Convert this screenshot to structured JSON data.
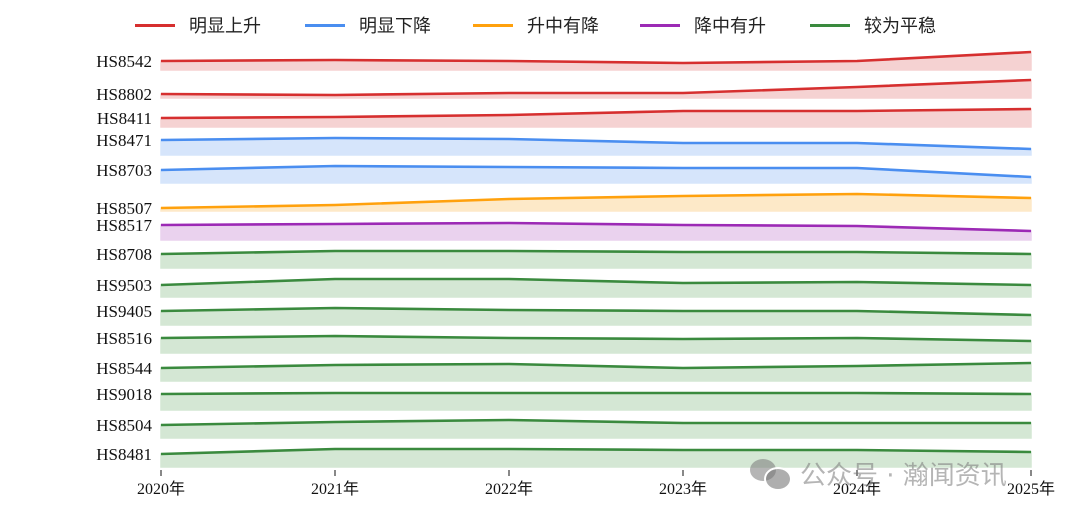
{
  "legend": [
    {
      "label": "明显上升",
      "color": "#d62f2f"
    },
    {
      "label": "明显下降",
      "color": "#4a8ef0"
    },
    {
      "label": "升中有降",
      "color": "#ffa10d"
    },
    {
      "label": "降中有升",
      "color": "#9c2ab5"
    },
    {
      "label": "较为平稳",
      "color": "#3a8a3e"
    }
  ],
  "watermark": {
    "text": "公众号 · 瀚闻资讯"
  },
  "chart_data": {
    "type": "area",
    "title": "",
    "xlabel": "",
    "ylabel": "",
    "categories": [
      "2020年",
      "2021年",
      "2022年",
      "2023年",
      "2024年",
      "2025年"
    ],
    "grid": false,
    "legend_position": "top",
    "note": "Ridgeline chart; values are relative line heights in px above each row's baseline (approximate)",
    "series": [
      {
        "name": "HS8542",
        "group": "明显上升",
        "values": [
          9,
          10,
          9,
          7,
          9,
          18
        ]
      },
      {
        "name": "HS8802",
        "group": "明显上升",
        "values": [
          4,
          3,
          5,
          5,
          11,
          18
        ]
      },
      {
        "name": "HS8411",
        "group": "明显上升",
        "values": [
          9,
          10,
          12,
          16,
          16,
          18
        ]
      },
      {
        "name": "HS8471",
        "group": "明显下降",
        "values": [
          15,
          17,
          16,
          12,
          12,
          6
        ]
      },
      {
        "name": "HS8703",
        "group": "明显下降",
        "values": [
          13,
          17,
          16,
          15,
          15,
          6
        ]
      },
      {
        "name": "HS8507",
        "group": "升中有降",
        "values": [
          3,
          6,
          12,
          15,
          17,
          13
        ]
      },
      {
        "name": "HS8517",
        "group": "降中有升",
        "values": [
          15,
          16,
          17,
          15,
          14,
          9
        ]
      },
      {
        "name": "HS8708",
        "group": "较为平稳",
        "values": [
          14,
          17,
          17,
          16,
          16,
          14
        ]
      },
      {
        "name": "HS9503",
        "group": "较为平稳",
        "values": [
          12,
          18,
          18,
          14,
          15,
          12
        ]
      },
      {
        "name": "HS9405",
        "group": "较为平稳",
        "values": [
          14,
          17,
          15,
          14,
          14,
          10
        ]
      },
      {
        "name": "HS8516",
        "group": "较为平稳",
        "values": [
          15,
          17,
          15,
          14,
          15,
          12
        ]
      },
      {
        "name": "HS8544",
        "group": "较为平稳",
        "values": [
          13,
          16,
          17,
          13,
          15,
          18
        ]
      },
      {
        "name": "HS9018",
        "group": "较为平稳",
        "values": [
          16,
          17,
          17,
          17,
          17,
          16
        ]
      },
      {
        "name": "HS8504",
        "group": "较为平稳",
        "values": [
          13,
          16,
          18,
          15,
          15,
          15
        ]
      },
      {
        "name": "HS8481",
        "group": "较为平稳",
        "values": [
          13,
          18,
          18,
          17,
          17,
          15
        ]
      }
    ]
  }
}
